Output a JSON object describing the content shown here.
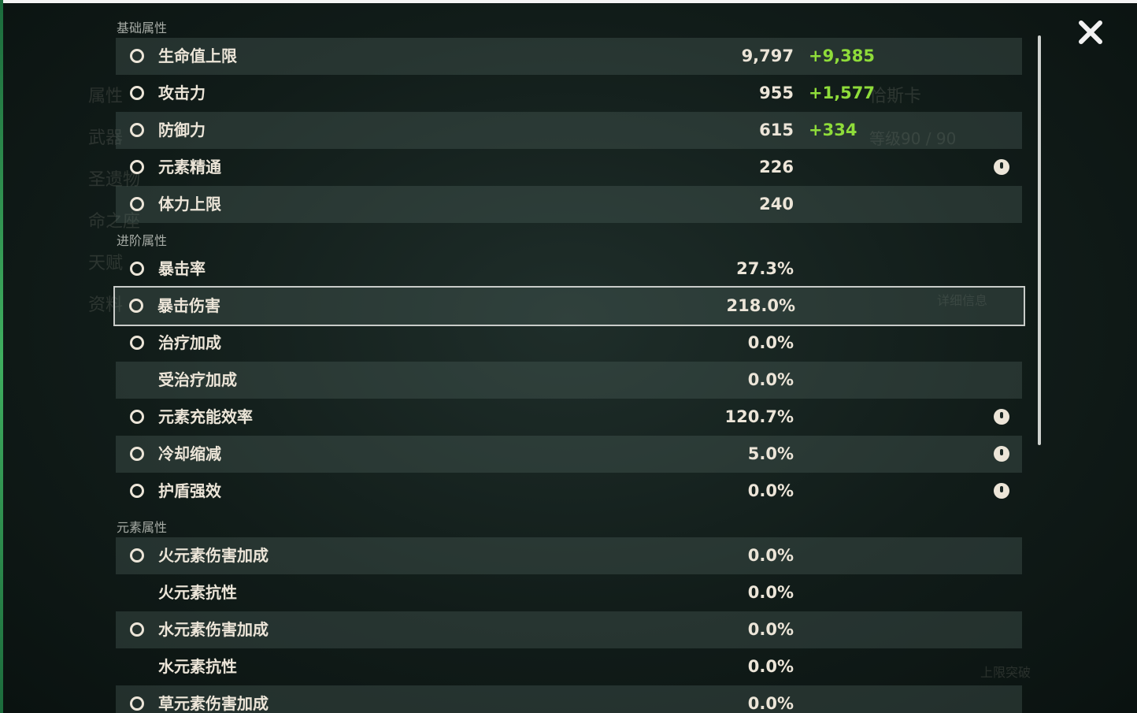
{
  "background": {
    "character_name": "恰斯卡",
    "level": "等级90 / 90",
    "details": "详细信息",
    "ascend": "上限突破",
    "menu": [
      "属性",
      "武器",
      "圣遗物",
      "命之座",
      "天赋",
      "资料"
    ]
  },
  "sections": [
    {
      "title": "基础属性",
      "rows": [
        {
          "label": "生命值上限",
          "value": "9,797",
          "bonus": "+9,385"
        },
        {
          "label": "攻击力",
          "value": "955",
          "bonus": "+1,577"
        },
        {
          "label": "防御力",
          "value": "615",
          "bonus": "+334"
        },
        {
          "label": "元素精通",
          "value": "226",
          "help": true
        },
        {
          "label": "体力上限",
          "value": "240"
        }
      ]
    },
    {
      "title": "进阶属性",
      "rows": [
        {
          "label": "暴击率",
          "value": "27.3%"
        },
        {
          "label": "暴击伤害",
          "value": "218.0%",
          "selected": true
        },
        {
          "label": "治疗加成",
          "value": "0.0%"
        },
        {
          "label": "受治疗加成",
          "value": "0.0%",
          "icon": false
        },
        {
          "label": "元素充能效率",
          "value": "120.7%",
          "help": true
        },
        {
          "label": "冷却缩减",
          "value": "5.0%",
          "help": true
        },
        {
          "label": "护盾强效",
          "value": "0.0%",
          "help": true
        }
      ]
    },
    {
      "title": "元素属性",
      "rows": [
        {
          "label": "火元素伤害加成",
          "value": "0.0%"
        },
        {
          "label": "火元素抗性",
          "value": "0.0%",
          "icon": false
        },
        {
          "label": "水元素伤害加成",
          "value": "0.0%"
        },
        {
          "label": "水元素抗性",
          "value": "0.0%",
          "icon": false
        },
        {
          "label": "草元素伤害加成",
          "value": "0.0%"
        }
      ]
    }
  ]
}
